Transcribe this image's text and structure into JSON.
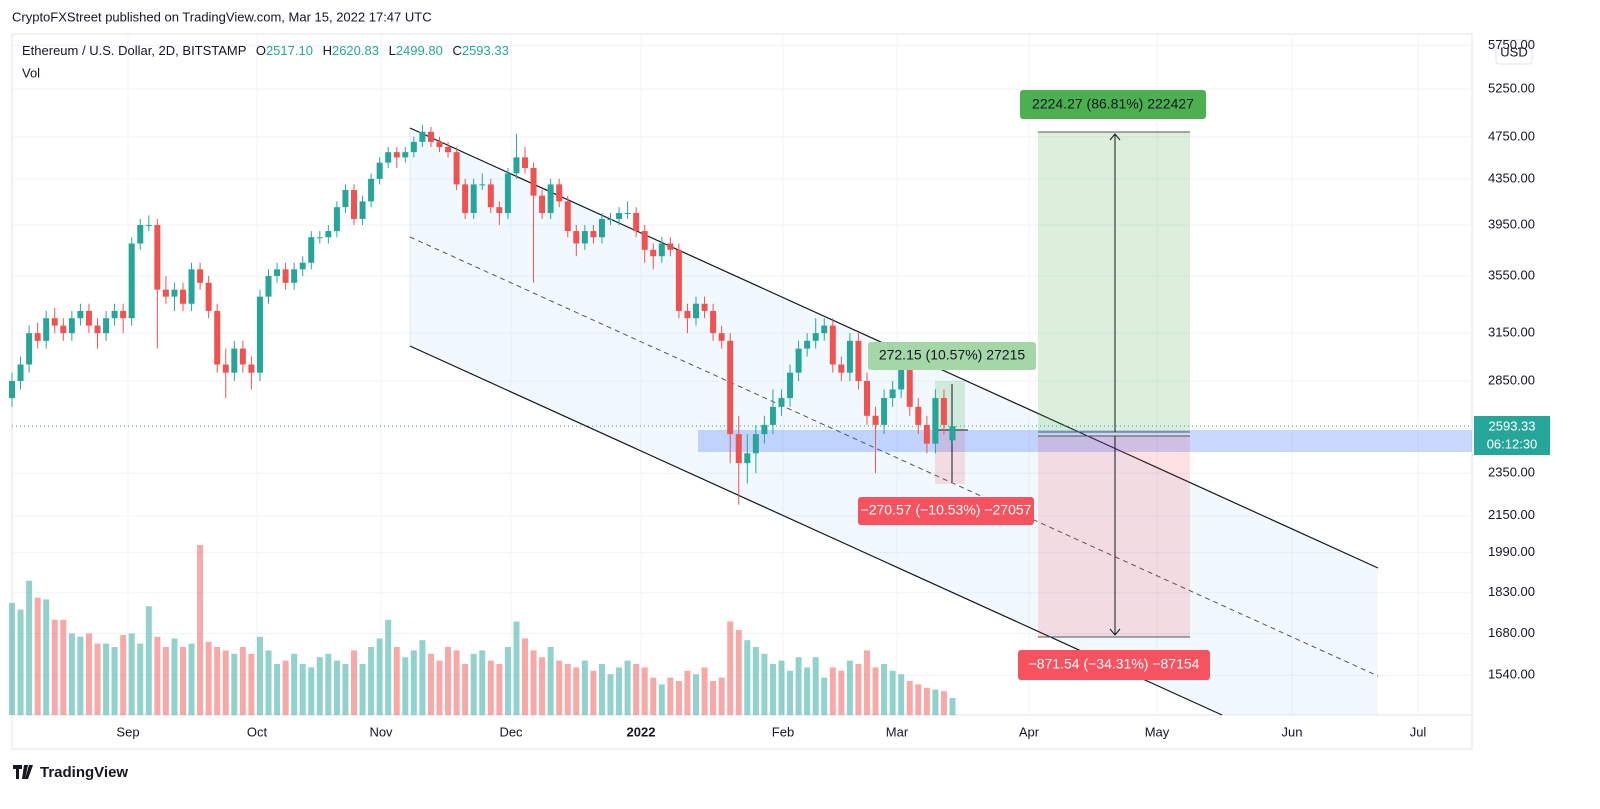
{
  "chart_data": {
    "type": "candlestick",
    "attribution": "CryptoFXStreet published on TradingView.com, Mar 15, 2022 17:47 UTC",
    "brand": "TradingView",
    "legend": {
      "symbol": "Ethereum / U.S. Dollar, 2D, BITSTAMP",
      "o_label": "O",
      "o": "2517.10",
      "h_label": "H",
      "h": "2620.83",
      "l_label": "L",
      "l": "2499.80",
      "c_label": "C",
      "c": "2593.33",
      "vol": "Vol"
    },
    "currency": "USD",
    "countdown": "06:12:30",
    "x_labels": [
      "Sep",
      "Oct",
      "Nov",
      "Dec",
      "2022",
      "Feb",
      "Mar",
      "Apr",
      "May",
      "Jun",
      "Jul"
    ],
    "log_scale": true,
    "ylim": [
      1420,
      5750
    ],
    "yticks": [
      {
        "value": 5750,
        "label": "5750.00"
      },
      {
        "value": 5250,
        "label": "5250.00"
      },
      {
        "value": 4750,
        "label": "4750.00"
      },
      {
        "value": 4350,
        "label": "4350.00"
      },
      {
        "value": 3950,
        "label": "3950.00"
      },
      {
        "value": 3550,
        "label": "3550.00"
      },
      {
        "value": 3150,
        "label": "3150.00"
      },
      {
        "value": 2850,
        "label": "2850.00"
      },
      {
        "value": 2350,
        "label": "2350.00"
      },
      {
        "value": 2150,
        "label": "2150.00"
      },
      {
        "value": 1990,
        "label": "1990.00"
      },
      {
        "value": 1830,
        "label": "1830.00"
      },
      {
        "value": 1680,
        "label": "1680.00"
      },
      {
        "value": 1540,
        "label": "1540.00"
      }
    ],
    "up_color": "#26a69a",
    "down_color": "#ef5350",
    "open": [
      2750,
      2850,
      2950,
      3150,
      3100,
      3250,
      3200,
      3150,
      3250,
      3300,
      3200,
      3150,
      3250,
      3300,
      3250,
      3800,
      3950,
      3950,
      3450,
      3400,
      3450,
      3350,
      3600,
      3500,
      3300,
      2950,
      2900,
      3050,
      2950,
      2900,
      3400,
      3550,
      3600,
      3500,
      3600,
      3650,
      3850,
      3850,
      3900,
      4100,
      4250,
      4000,
      4150,
      4350,
      4500,
      4600,
      4550,
      4600,
      4700,
      4800,
      4700,
      4650,
      4600,
      4300,
      4050,
      4300,
      4300,
      4100,
      4050,
      4400,
      4550,
      4450,
      4200,
      4050,
      4300,
      4150,
      3900,
      3800,
      3900,
      3850,
      4000,
      4000,
      4050,
      4050,
      3900,
      3750,
      3700,
      3800,
      3750,
      3300,
      3250,
      3350,
      3300,
      3150,
      3100,
      2550,
      2400,
      2450,
      2550,
      2600,
      2700,
      2750,
      2900,
      3050,
      3100,
      3150,
      3200,
      2950,
      2900,
      3100,
      2850,
      2650,
      2600,
      2750,
      2800,
      2950,
      2700,
      2600,
      2500,
      2750,
      2517.1
    ],
    "high": [
      2900,
      3000,
      3200,
      3220,
      3300,
      3320,
      3250,
      3300,
      3350,
      3350,
      3250,
      3300,
      3350,
      3350,
      3850,
      4000,
      4030,
      4000,
      3550,
      3500,
      3500,
      3650,
      3650,
      3550,
      3350,
      3050,
      3100,
      3100,
      3000,
      3450,
      3600,
      3650,
      3650,
      3650,
      3700,
      3900,
      3900,
      3950,
      4150,
      4300,
      4300,
      4200,
      4400,
      4550,
      4650,
      4650,
      4650,
      4750,
      4870,
      4850,
      4750,
      4700,
      4650,
      4350,
      4350,
      4400,
      4350,
      4150,
      4450,
      4780,
      4650,
      4500,
      4250,
      4350,
      4350,
      4200,
      3950,
      3950,
      3950,
      4050,
      4050,
      4100,
      4150,
      4100,
      3950,
      3800,
      3850,
      3850,
      3800,
      3350,
      3400,
      3400,
      3350,
      3200,
      3150,
      2650,
      2550,
      2600,
      2650,
      2800,
      2800,
      2950,
      3100,
      3150,
      3250,
      3250,
      3250,
      3000,
      3150,
      3150,
      2900,
      2700,
      2800,
      2850,
      3000,
      3000,
      2750,
      2650,
      2800,
      2800,
      2620.83
    ],
    "low": [
      2700,
      2800,
      2900,
      3050,
      3050,
      3150,
      3100,
      3100,
      3200,
      3150,
      3050,
      3100,
      3200,
      3150,
      3200,
      3750,
      3900,
      3050,
      3350,
      3300,
      3300,
      3300,
      3450,
      3250,
      2900,
      2750,
      2850,
      2900,
      2800,
      2850,
      3350,
      3500,
      3450,
      3450,
      3550,
      3600,
      3800,
      3800,
      3850,
      4050,
      3950,
      3950,
      4100,
      4300,
      4450,
      4450,
      4500,
      4550,
      4650,
      4650,
      4600,
      4550,
      4250,
      4000,
      4000,
      4250,
      4050,
      3950,
      4000,
      4350,
      4400,
      3500,
      4000,
      4000,
      4100,
      3850,
      3700,
      3750,
      3800,
      3800,
      3950,
      3950,
      4000,
      3850,
      3650,
      3600,
      3650,
      3700,
      3250,
      3150,
      3200,
      3250,
      3100,
      3050,
      2400,
      2200,
      2300,
      2350,
      2500,
      2550,
      2650,
      2700,
      2850,
      3000,
      3050,
      3100,
      2900,
      2850,
      2850,
      2800,
      2600,
      2350,
      2550,
      2700,
      2750,
      2650,
      2550,
      2450,
      2450,
      2550,
      2499.8
    ],
    "close": [
      2850,
      2950,
      3150,
      3100,
      3250,
      3200,
      3150,
      3250,
      3300,
      3200,
      3150,
      3250,
      3300,
      3250,
      3800,
      3950,
      3950,
      3450,
      3400,
      3450,
      3350,
      3600,
      3500,
      3300,
      2950,
      2900,
      3050,
      2950,
      2900,
      3400,
      3550,
      3600,
      3500,
      3600,
      3650,
      3850,
      3850,
      3900,
      4100,
      4250,
      4000,
      4150,
      4350,
      4500,
      4600,
      4550,
      4600,
      4700,
      4800,
      4700,
      4650,
      4600,
      4300,
      4050,
      4300,
      4300,
      4100,
      4050,
      4400,
      4550,
      4450,
      4200,
      4050,
      4300,
      4150,
      3900,
      3800,
      3900,
      3850,
      4000,
      4000,
      4050,
      4050,
      3900,
      3750,
      3700,
      3800,
      3750,
      3300,
      3250,
      3350,
      3300,
      3150,
      3100,
      2550,
      2400,
      2450,
      2550,
      2600,
      2700,
      2750,
      2900,
      3050,
      3100,
      3150,
      3200,
      2950,
      2900,
      3100,
      2850,
      2650,
      2600,
      2750,
      2800,
      2950,
      2700,
      2600,
      2500,
      2750,
      2600,
      2593.33
    ],
    "volume": [
      66,
      62,
      79,
      69,
      68,
      56,
      56,
      48,
      46,
      48,
      42,
      42,
      40,
      47,
      48,
      42,
      64,
      46,
      40,
      45,
      40,
      42,
      100,
      43,
      40,
      38,
      36,
      40,
      36,
      46,
      38,
      30,
      32,
      36,
      30,
      28,
      34,
      36,
      32,
      30,
      38,
      30,
      40,
      45,
      56,
      40,
      34,
      38,
      44,
      36,
      32,
      40,
      38,
      30,
      36,
      38,
      32,
      30,
      40,
      55,
      45,
      38,
      34,
      40,
      32,
      30,
      28,
      32,
      26,
      30,
      24,
      28,
      32,
      30,
      28,
      22,
      18,
      22,
      20,
      26,
      24,
      28,
      20,
      22,
      55,
      50,
      44,
      40,
      36,
      30,
      32,
      26,
      34,
      28,
      34,
      22,
      28,
      26,
      32,
      30,
      38,
      28,
      30,
      26,
      24,
      20,
      18,
      16,
      15,
      14,
      10
    ],
    "annotations": [
      "2224.27 (86.81%) 222427",
      "272.15 (10.57%) 27215",
      "−270.57 (−10.53%) −27057",
      "−871.54 (−34.31%) −87154"
    ]
  }
}
